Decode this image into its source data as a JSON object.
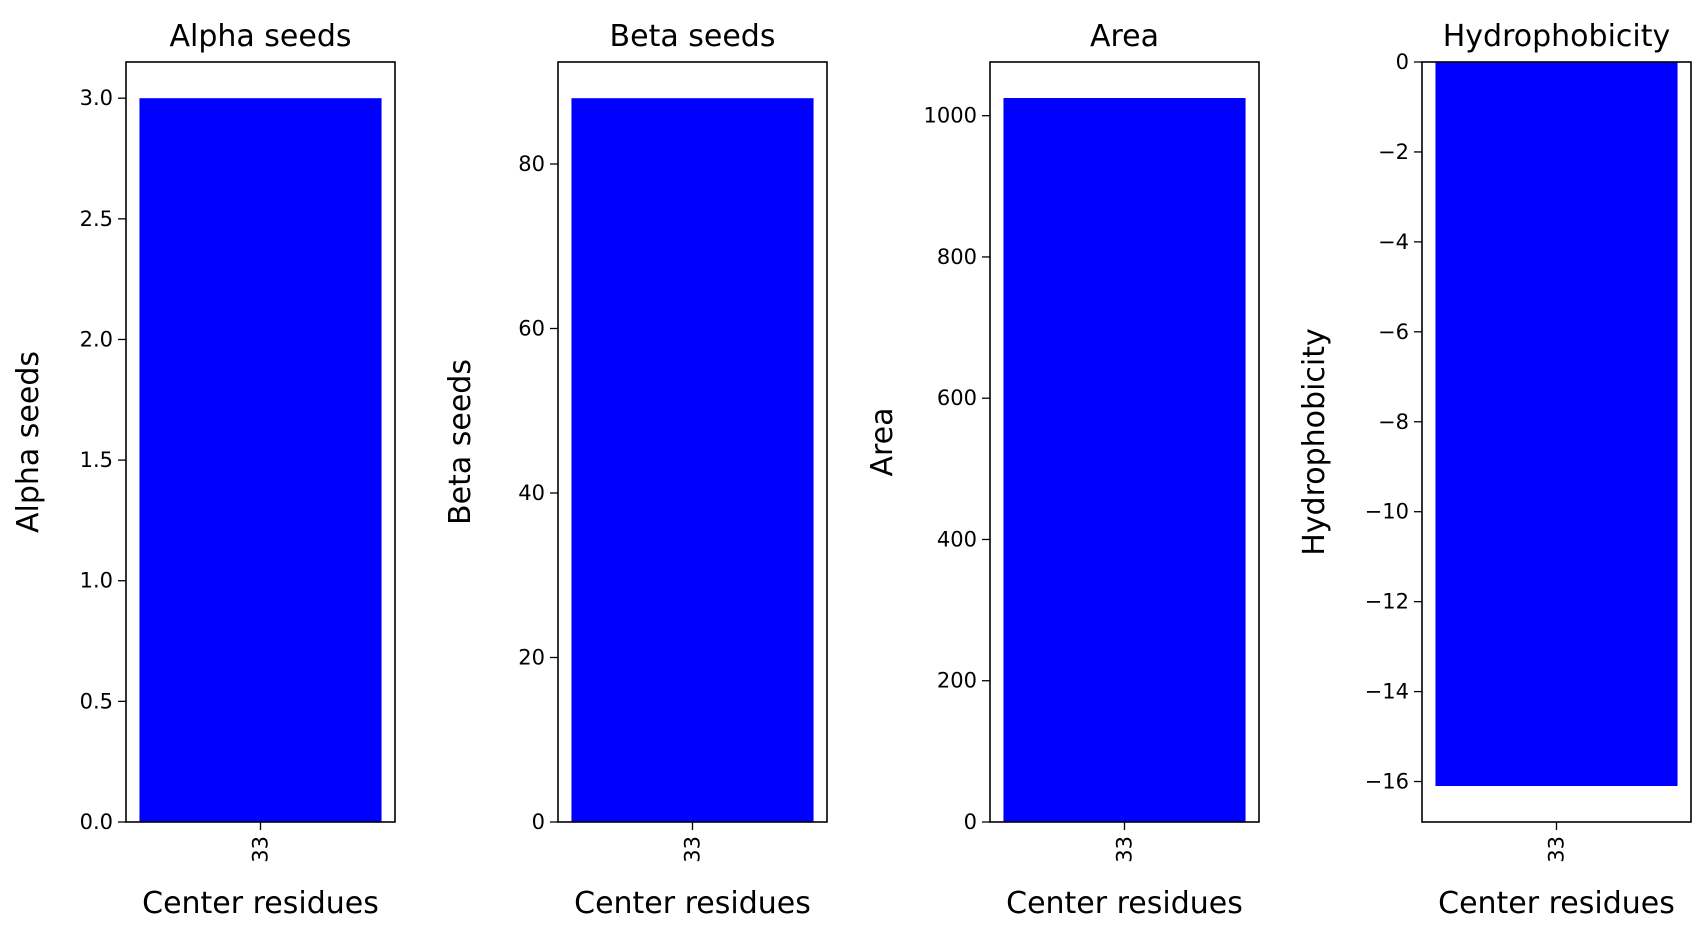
{
  "figure": {
    "bar_color": "#0000ff"
  },
  "chart_data": [
    {
      "type": "bar",
      "title": "Alpha seeds",
      "xlabel": "Center residues",
      "ylabel": "Alpha seeds",
      "categories": [
        "33"
      ],
      "values": [
        3
      ],
      "ylim": [
        0,
        3.15
      ],
      "yticks": [
        "0.0",
        "0.5",
        "1.0",
        "1.5",
        "2.0",
        "2.5",
        "3.0"
      ],
      "ytick_values": [
        0,
        0.5,
        1.0,
        1.5,
        2.0,
        2.5,
        3.0
      ],
      "grid": false
    },
    {
      "type": "bar",
      "title": "Beta seeds",
      "xlabel": "Center residues",
      "ylabel": "Beta seeds",
      "categories": [
        "33"
      ],
      "values": [
        88
      ],
      "ylim": [
        0,
        92.4
      ],
      "yticks": [
        "0",
        "20",
        "40",
        "60",
        "80"
      ],
      "ytick_values": [
        0,
        20,
        40,
        60,
        80
      ],
      "grid": false
    },
    {
      "type": "bar",
      "title": "Area",
      "xlabel": "Center residues",
      "ylabel": "Area",
      "categories": [
        "33"
      ],
      "values": [
        1025
      ],
      "ylim": [
        0,
        1076
      ],
      "yticks": [
        "0",
        "200",
        "400",
        "600",
        "800",
        "1000"
      ],
      "ytick_values": [
        0,
        200,
        400,
        600,
        800,
        1000
      ],
      "grid": false
    },
    {
      "type": "bar",
      "title": "Hydrophobicity",
      "xlabel": "Center residues",
      "ylabel": "Hydrophobicity",
      "categories": [
        "33"
      ],
      "values": [
        -16.1
      ],
      "ylim": [
        -16.9,
        0
      ],
      "yticks": [
        "0",
        "−2",
        "−4",
        "−6",
        "−8",
        "−10",
        "−12",
        "−14",
        "−16"
      ],
      "ytick_values": [
        0,
        -2,
        -4,
        -6,
        -8,
        -10,
        -12,
        -14,
        -16
      ],
      "grid": false
    }
  ]
}
